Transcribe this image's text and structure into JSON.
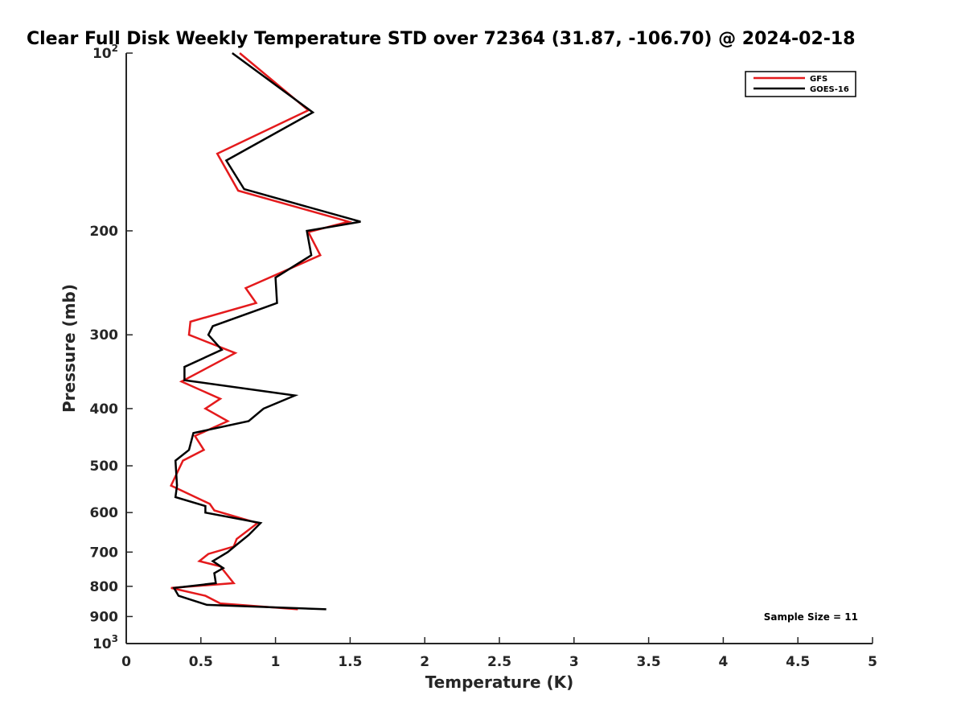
{
  "chart_data": {
    "type": "line",
    "title": "Clear Full Disk Weekly Temperature STD over 72364 (31.87, -106.70) @ 2024-02-18",
    "xlabel": "Temperature (K)",
    "ylabel": "Pressure (mb)",
    "xlim": [
      0,
      5
    ],
    "ylim": [
      100,
      1000
    ],
    "y_scale": "log",
    "y_reversed": true,
    "grid": false,
    "legend_placement": "top-right",
    "x_ticks": [
      0,
      0.5,
      1,
      1.5,
      2,
      2.5,
      3,
      3.5,
      4,
      4.5,
      5
    ],
    "x_tick_labels": [
      "0",
      "0.5",
      "1",
      "1.5",
      "2",
      "2.5",
      "3",
      "3.5",
      "4",
      "4.5",
      "5"
    ],
    "y_ticks": [
      {
        "value": 100,
        "base": "10",
        "exp": "2"
      },
      {
        "value": 200,
        "label": "200"
      },
      {
        "value": 300,
        "label": "300"
      },
      {
        "value": 400,
        "label": "400"
      },
      {
        "value": 500,
        "label": "500"
      },
      {
        "value": 600,
        "label": "600"
      },
      {
        "value": 700,
        "label": "700"
      },
      {
        "value": 800,
        "label": "800"
      },
      {
        "value": 900,
        "label": "900"
      },
      {
        "value": 1000,
        "base": "10",
        "exp": "3"
      }
    ],
    "series": [
      {
        "name": "GFS",
        "color": "#e41a1c",
        "points": [
          {
            "x": 0.76,
            "y": 100
          },
          {
            "x": 1.22,
            "y": 125
          },
          {
            "x": 0.61,
            "y": 148
          },
          {
            "x": 0.75,
            "y": 171
          },
          {
            "x": 1.49,
            "y": 193
          },
          {
            "x": 1.22,
            "y": 201
          },
          {
            "x": 1.3,
            "y": 220
          },
          {
            "x": 0.8,
            "y": 250
          },
          {
            "x": 0.87,
            "y": 265
          },
          {
            "x": 0.43,
            "y": 285
          },
          {
            "x": 0.42,
            "y": 300
          },
          {
            "x": 0.73,
            "y": 322
          },
          {
            "x": 0.37,
            "y": 360
          },
          {
            "x": 0.63,
            "y": 385
          },
          {
            "x": 0.53,
            "y": 400
          },
          {
            "x": 0.68,
            "y": 420
          },
          {
            "x": 0.46,
            "y": 445
          },
          {
            "x": 0.52,
            "y": 470
          },
          {
            "x": 0.38,
            "y": 490
          },
          {
            "x": 0.3,
            "y": 540
          },
          {
            "x": 0.56,
            "y": 580
          },
          {
            "x": 0.59,
            "y": 595
          },
          {
            "x": 0.88,
            "y": 625
          },
          {
            "x": 0.74,
            "y": 665
          },
          {
            "x": 0.72,
            "y": 685
          },
          {
            "x": 0.55,
            "y": 705
          },
          {
            "x": 0.49,
            "y": 725
          },
          {
            "x": 0.63,
            "y": 740
          },
          {
            "x": 0.72,
            "y": 790
          },
          {
            "x": 0.3,
            "y": 805
          },
          {
            "x": 0.53,
            "y": 830
          },
          {
            "x": 0.63,
            "y": 855
          },
          {
            "x": 1.15,
            "y": 875
          }
        ]
      },
      {
        "name": "GOES-16",
        "color": "#000000",
        "points": [
          {
            "x": 0.71,
            "y": 100
          },
          {
            "x": 1.25,
            "y": 126
          },
          {
            "x": 0.67,
            "y": 152
          },
          {
            "x": 0.79,
            "y": 170
          },
          {
            "x": 1.57,
            "y": 193
          },
          {
            "x": 1.21,
            "y": 200
          },
          {
            "x": 1.24,
            "y": 220
          },
          {
            "x": 1.0,
            "y": 240
          },
          {
            "x": 1.01,
            "y": 265
          },
          {
            "x": 0.58,
            "y": 290
          },
          {
            "x": 0.55,
            "y": 300
          },
          {
            "x": 0.64,
            "y": 318
          },
          {
            "x": 0.39,
            "y": 340
          },
          {
            "x": 0.39,
            "y": 358
          },
          {
            "x": 1.13,
            "y": 380
          },
          {
            "x": 0.92,
            "y": 400
          },
          {
            "x": 0.82,
            "y": 420
          },
          {
            "x": 0.45,
            "y": 440
          },
          {
            "x": 0.42,
            "y": 470
          },
          {
            "x": 0.33,
            "y": 490
          },
          {
            "x": 0.34,
            "y": 540
          },
          {
            "x": 0.33,
            "y": 565
          },
          {
            "x": 0.53,
            "y": 585
          },
          {
            "x": 0.53,
            "y": 600
          },
          {
            "x": 0.9,
            "y": 625
          },
          {
            "x": 0.82,
            "y": 655
          },
          {
            "x": 0.74,
            "y": 680
          },
          {
            "x": 0.68,
            "y": 700
          },
          {
            "x": 0.58,
            "y": 725
          },
          {
            "x": 0.65,
            "y": 745
          },
          {
            "x": 0.59,
            "y": 760
          },
          {
            "x": 0.6,
            "y": 790
          },
          {
            "x": 0.32,
            "y": 805
          },
          {
            "x": 0.35,
            "y": 830
          },
          {
            "x": 0.54,
            "y": 860
          },
          {
            "x": 1.34,
            "y": 875
          }
        ]
      }
    ],
    "annotations": [
      {
        "text": "Sample Size = 11",
        "placement": "bottom-right"
      }
    ]
  }
}
